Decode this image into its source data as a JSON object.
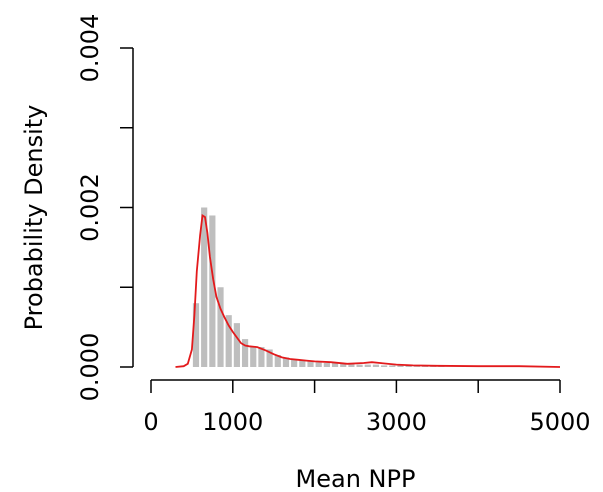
{
  "chart_data": {
    "type": "bar",
    "title": "",
    "xlabel": "Mean NPP",
    "ylabel": "Probability Density",
    "xlim": [
      0,
      5000
    ],
    "ylim": [
      0,
      0.004
    ],
    "x_ticks": [
      0,
      1000,
      3000,
      5000
    ],
    "x_tick_marks": [
      0,
      1000,
      2000,
      3000,
      4000,
      5000
    ],
    "y_ticks": [
      0.0,
      0.001,
      0.002,
      0.003,
      0.004
    ],
    "y_tick_labels": [
      "0.000",
      "",
      "0.002",
      "",
      "0.004"
    ],
    "grid": false,
    "legend": "none",
    "histogram": {
      "bin_width": 100,
      "bin_starts": [
        500,
        600,
        700,
        800,
        900,
        1000,
        1100,
        1200,
        1300,
        1400,
        1500,
        1600,
        1700,
        1800,
        1900,
        2000,
        2100,
        2200,
        2300,
        2400,
        2500,
        2600,
        2700,
        2800,
        2900,
        3000,
        3100,
        3200,
        3300,
        3400,
        3500
      ],
      "density": [
        0.0008,
        0.002,
        0.0019,
        0.001,
        0.00065,
        0.00055,
        0.00035,
        0.00026,
        0.00025,
        0.00022,
        0.00015,
        0.00012,
        0.0001,
        8e-05,
        7e-05,
        6e-05,
        5e-05,
        5e-05,
        4e-05,
        4e-05,
        3e-05,
        3e-05,
        3e-05,
        2e-05,
        2e-05,
        2e-05,
        2e-05,
        1e-05,
        1e-05,
        1e-05,
        1e-05
      ],
      "color": "#bebebe"
    },
    "density_curve": {
      "x": [
        300,
        400,
        450,
        500,
        530,
        560,
        600,
        630,
        660,
        690,
        720,
        760,
        800,
        850,
        900,
        950,
        1000,
        1050,
        1100,
        1150,
        1200,
        1300,
        1400,
        1500,
        1600,
        1700,
        1800,
        1900,
        2000,
        2200,
        2400,
        2600,
        2700,
        2800,
        3000,
        3200,
        3500,
        4000,
        4500,
        5000
      ],
      "y": [
        0.0,
        1e-05,
        4e-05,
        0.00022,
        0.00065,
        0.0012,
        0.00165,
        0.0019,
        0.00188,
        0.00168,
        0.00138,
        0.0011,
        0.00088,
        0.00073,
        0.00062,
        0.00052,
        0.00044,
        0.00037,
        0.0003,
        0.00027,
        0.00026,
        0.00025,
        0.00021,
        0.00016,
        0.00012,
        0.0001,
        9e-05,
        8e-05,
        7e-05,
        6e-05,
        4e-05,
        5e-05,
        6e-05,
        5e-05,
        3e-05,
        2e-05,
        1.5e-05,
        1e-05,
        1e-05,
        0.0
      ],
      "color": "#e31a1c"
    }
  }
}
